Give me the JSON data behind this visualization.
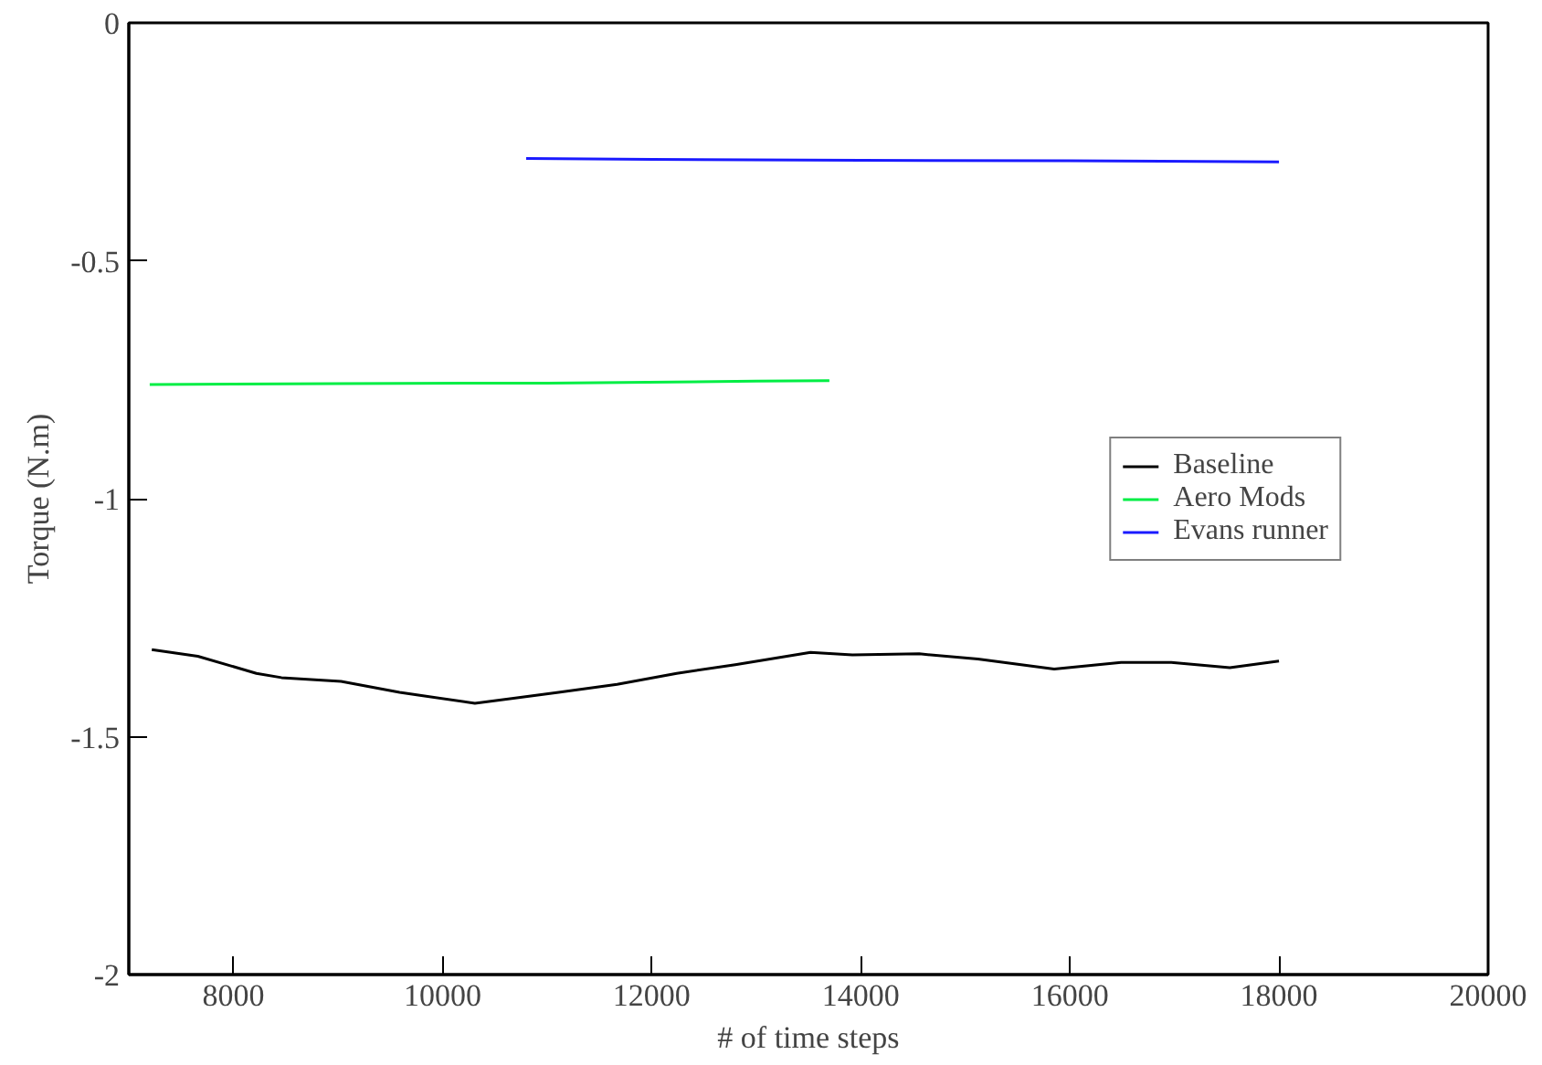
{
  "chart_data": {
    "type": "line",
    "xlabel": "# of time steps",
    "ylabel": "Torque (N.m)",
    "xlim": [
      7000,
      20000
    ],
    "xticks": [
      8000,
      10000,
      12000,
      14000,
      16000,
      18000,
      20000
    ],
    "ylim": [
      -2,
      0
    ],
    "yticks": [
      -2,
      -1.5,
      -1,
      -0.5,
      0
    ],
    "grid": false,
    "legend": "right",
    "marker": "none",
    "line_style": "solid",
    "series": [
      {
        "name": "Baseline",
        "color": "#000000",
        "x": [
          7220,
          7660,
          8220,
          8460,
          9030,
          9590,
          10310,
          11110,
          11670,
          12240,
          12800,
          13520,
          13920,
          14560,
          15120,
          15850,
          16490,
          16970,
          17530,
          18000
        ],
        "values": [
          -1.317,
          -1.331,
          -1.367,
          -1.376,
          -1.384,
          -1.407,
          -1.43,
          -1.407,
          -1.39,
          -1.367,
          -1.349,
          -1.323,
          -1.328,
          -1.326,
          -1.337,
          -1.358,
          -1.344,
          -1.344,
          -1.355,
          -1.341
        ]
      },
      {
        "name": "Aero Mods",
        "color": "#00ee44",
        "x": [
          7200,
          9000,
          11000,
          13000,
          13700
        ],
        "values": [
          -0.76,
          -0.758,
          -0.757,
          -0.753,
          -0.752
        ]
      },
      {
        "name": "Evans runner",
        "color": "#1a1aff",
        "x": [
          10800,
          12000,
          14000,
          16000,
          18000
        ],
        "values": [
          -0.285,
          -0.287,
          -0.289,
          -0.29,
          -0.292
        ]
      }
    ]
  }
}
